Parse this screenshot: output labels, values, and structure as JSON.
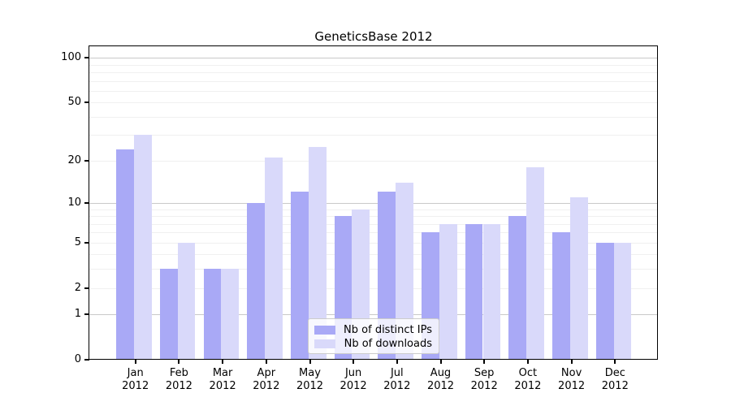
{
  "chart_data": {
    "type": "bar",
    "title": "GeneticsBase 2012",
    "categories": [
      "Jan 2012",
      "Feb 2012",
      "Mar 2012",
      "Apr 2012",
      "May 2012",
      "Jun 2012",
      "Jul 2012",
      "Aug 2012",
      "Sep 2012",
      "Oct 2012",
      "Nov 2012",
      "Dec 2012"
    ],
    "series": [
      {
        "key": "distinct-ips",
        "name": "Nb of distinct IPs",
        "color": "#a9a9f6",
        "values": [
          24,
          3,
          3,
          10,
          12,
          8,
          12,
          6,
          7,
          8,
          6,
          5
        ]
      },
      {
        "key": "downloads",
        "name": "Nb of downloads",
        "color": "#d9d9fa",
        "values": [
          30,
          5,
          3,
          21,
          25,
          9,
          14,
          7,
          7,
          18,
          11,
          5
        ]
      }
    ],
    "xlabel": "",
    "ylabel": "",
    "yticks": [
      0,
      1,
      2,
      5,
      10,
      20,
      50,
      100
    ],
    "y_scale": "log10(1+value)",
    "ylim": [
      0,
      119
    ],
    "grid": {
      "on": true,
      "major_lines": [
        1,
        10,
        100
      ],
      "minor_lines": [
        2,
        3,
        4,
        5,
        6,
        7,
        8,
        9,
        20,
        30,
        40,
        50,
        60,
        70,
        80,
        90
      ]
    },
    "legend": {
      "position": "lower center, inside plot",
      "entries": [
        "Nb of distinct IPs",
        "Nb of downloads"
      ]
    }
  }
}
